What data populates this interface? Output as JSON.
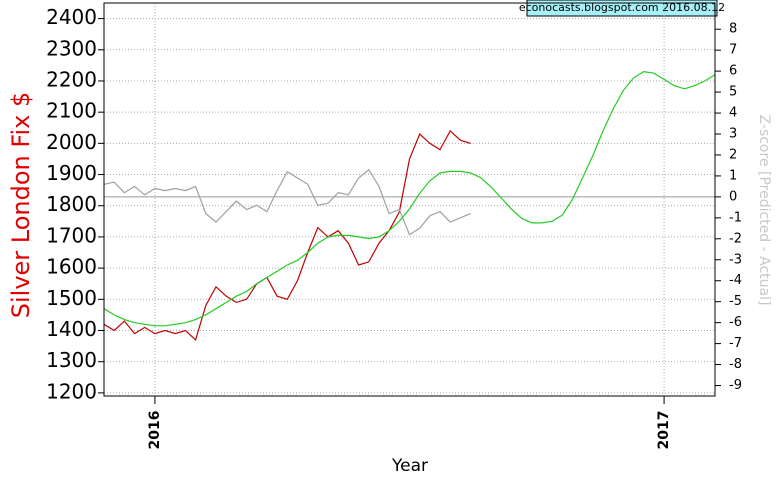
{
  "chart_data": {
    "type": "line",
    "y_label": "Silver London Fix $",
    "y2_label": "Z-score [Predicted - Actual]",
    "x_label": "Year",
    "annotation": "econocasts.blogspot.com 2016.08.12",
    "x": [
      2015.9,
      2015.92,
      2015.94,
      2015.96,
      2015.98,
      2016.0,
      2016.02,
      2016.04,
      2016.06,
      2016.08,
      2016.1,
      2016.12,
      2016.14,
      2016.16,
      2016.18,
      2016.2,
      2016.22,
      2016.24,
      2016.26,
      2016.28,
      2016.3,
      2016.32,
      2016.34,
      2016.36,
      2016.38,
      2016.4,
      2016.42,
      2016.44,
      2016.46,
      2016.48,
      2016.5,
      2016.52,
      2016.54,
      2016.56,
      2016.58,
      2016.6,
      2016.62,
      2016.64,
      2016.66,
      2016.68,
      2016.7,
      2016.72,
      2016.74,
      2016.76,
      2016.78,
      2016.8,
      2016.82,
      2016.84,
      2016.86,
      2016.88,
      2016.9,
      2016.92,
      2016.94,
      2016.96,
      2016.98,
      2017.0,
      2017.02,
      2017.04,
      2017.06,
      2017.08,
      2017.1
    ],
    "xlim": [
      2015.9,
      2017.1
    ],
    "xticks": [
      2016,
      2017
    ],
    "ylim": [
      1190,
      2450
    ],
    "yticks": [
      1200,
      1300,
      1400,
      1500,
      1600,
      1700,
      1800,
      1900,
      2000,
      2100,
      2200,
      2300,
      2400
    ],
    "y2lim": [
      -9.5,
      9.25
    ],
    "y2ticks": [
      -9,
      -8,
      -7,
      -6,
      -5,
      -4,
      -3,
      -2,
      -1,
      0,
      1,
      2,
      3,
      4,
      5,
      6,
      7,
      8
    ],
    "grid": true,
    "zero_line": true,
    "series": [
      {
        "name": "Silver London Fix",
        "color": "#c00000",
        "axis": "y",
        "values": [
          1420,
          1400,
          1430,
          1390,
          1410,
          1390,
          1400,
          1390,
          1400,
          1370,
          1480,
          1540,
          1510,
          1490,
          1500,
          1550,
          1570,
          1510,
          1500,
          1560,
          1650,
          1730,
          1700,
          1720,
          1680,
          1610,
          1620,
          1680,
          1720,
          1780,
          1950,
          2030,
          2000,
          1980,
          2040,
          2010,
          2000,
          null,
          null,
          null,
          null,
          null,
          null,
          null,
          null,
          null,
          null,
          null,
          null,
          null,
          null,
          null,
          null,
          null,
          null,
          null,
          null,
          null,
          null,
          null,
          null
        ]
      },
      {
        "name": "Z-score",
        "color": "#a0a0a0",
        "axis": "y2",
        "values": [
          0.6,
          0.7,
          0.2,
          0.5,
          0.1,
          0.4,
          0.3,
          0.4,
          0.3,
          0.5,
          -0.8,
          -1.2,
          -0.7,
          -0.2,
          -0.6,
          -0.4,
          -0.7,
          0.3,
          1.2,
          0.9,
          0.6,
          -0.4,
          -0.3,
          0.2,
          0.1,
          0.9,
          1.3,
          0.5,
          -0.8,
          -0.6,
          -1.8,
          -1.5,
          -0.9,
          -0.7,
          -1.2,
          -1.0,
          -0.8,
          null,
          null,
          null,
          null,
          null,
          null,
          null,
          null,
          null,
          null,
          null,
          null,
          null,
          null,
          null,
          null,
          null,
          null,
          null,
          null,
          null,
          null,
          null,
          null
        ]
      },
      {
        "name": "Predicted",
        "color": "#22cc22",
        "axis": "y",
        "values": [
          1470,
          1450,
          1435,
          1425,
          1420,
          1415,
          1415,
          1420,
          1425,
          1435,
          1450,
          1470,
          1490,
          1510,
          1525,
          1550,
          1570,
          1590,
          1610,
          1625,
          1650,
          1680,
          1700,
          1705,
          1705,
          1700,
          1695,
          1700,
          1720,
          1750,
          1790,
          1840,
          1880,
          1905,
          1910,
          1910,
          1905,
          1890,
          1860,
          1825,
          1790,
          1760,
          1745,
          1745,
          1750,
          1770,
          1820,
          1890,
          1960,
          2040,
          2110,
          2170,
          2210,
          2230,
          2225,
          2205,
          2185,
          2175,
          2185,
          2200,
          2220
        ]
      }
    ]
  }
}
